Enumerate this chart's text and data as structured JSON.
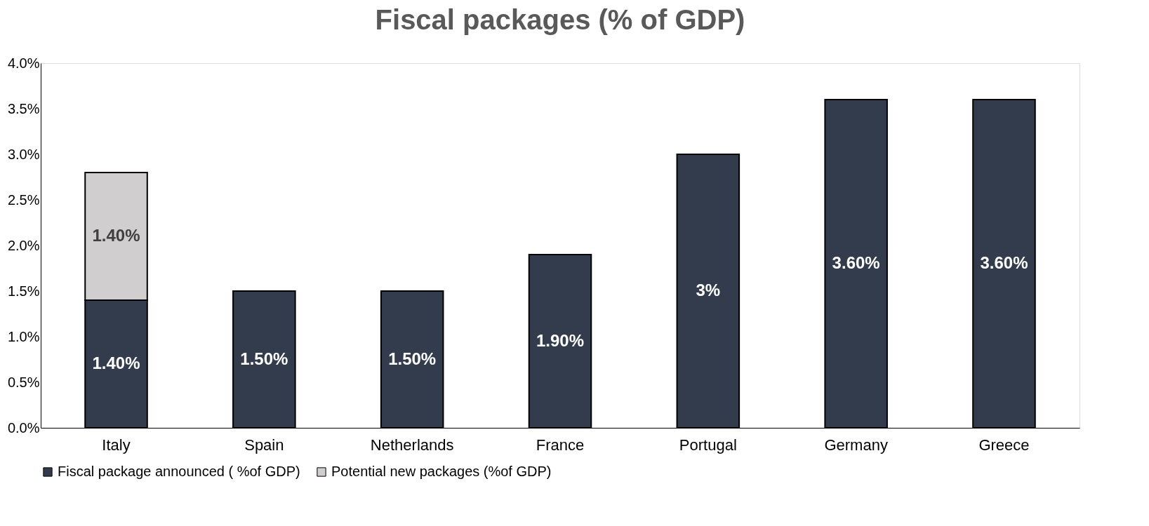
{
  "chart_data": {
    "type": "bar",
    "title": "Fiscal packages (% of GDP)",
    "categories": [
      "Italy",
      "Spain",
      "Netherlands",
      "France",
      "Portugal",
      "Germany",
      "Greece"
    ],
    "stacked": true,
    "series": [
      {
        "name": "Fiscal package announced ( %of GDP)",
        "color": "#333c4c",
        "values": [
          1.4,
          1.5,
          1.5,
          1.9,
          3,
          3.6,
          3.6
        ],
        "value_labels": [
          "1.40%",
          "1.50%",
          "1.50%",
          "1.90%",
          "3%",
          "3.60%",
          "3.60%"
        ]
      },
      {
        "name": "Potential new packages (%of GDP)",
        "color": "#d0cece",
        "values": [
          1.4,
          null,
          null,
          null,
          null,
          null,
          null
        ],
        "value_labels": [
          "1.40%",
          null,
          null,
          null,
          null,
          null,
          null
        ]
      }
    ],
    "ylim": [
      0,
      4
    ],
    "yticks": [
      {
        "value": 0,
        "label": "0.0%"
      },
      {
        "value": 0.5,
        "label": "0.5%"
      },
      {
        "value": 1,
        "label": "1.0%"
      },
      {
        "value": 1.5,
        "label": "1.5%"
      },
      {
        "value": 2,
        "label": "2.0%"
      },
      {
        "value": 2.5,
        "label": "2.5%"
      },
      {
        "value": 3,
        "label": "3.0%"
      },
      {
        "value": 3.5,
        "label": "3.5%"
      },
      {
        "value": 4,
        "label": "4.0%"
      }
    ],
    "legend": "bottom",
    "grid": false
  }
}
